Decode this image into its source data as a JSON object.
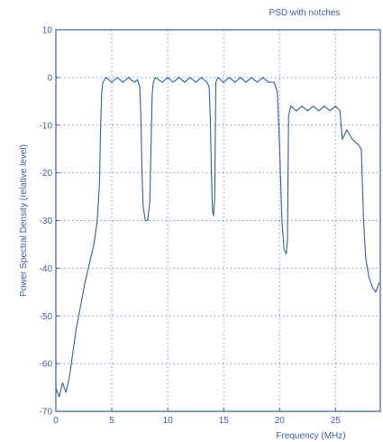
{
  "chart_data": {
    "type": "line",
    "title": "PSD with notches",
    "xlabel": "Frequency (MHz)",
    "ylabel": "Power Spectral Density (relative level)",
    "xlim": [
      0,
      29
    ],
    "ylim": [
      -70,
      10
    ],
    "xticks": [
      0,
      5,
      10,
      15,
      20,
      25
    ],
    "yticks": [
      10,
      0,
      -10,
      -20,
      -30,
      -40,
      -50,
      -60,
      -70
    ],
    "grid": true,
    "colors": {
      "line": "#2f5e99",
      "text": "#3a5f9a",
      "grid": "#3d6fb0"
    },
    "series": [
      {
        "x": [
          0,
          0.3,
          0.6,
          0.9,
          1.2,
          1.5,
          1.8,
          2.2,
          2.6,
          3.0,
          3.4,
          3.7,
          3.9,
          4.0,
          4.1,
          4.2,
          4.5,
          5.0,
          5.5,
          6.0,
          6.5,
          7.0,
          7.3,
          7.5,
          7.6,
          7.7,
          7.8,
          8.0,
          8.2,
          8.4,
          8.5,
          8.6,
          8.7,
          8.9,
          9.5,
          10.0,
          10.5,
          11.0,
          11.5,
          12.0,
          12.5,
          13.0,
          13.5,
          13.7,
          13.8,
          13.9,
          14.0,
          14.1,
          14.2,
          14.3,
          14.5,
          15.0,
          15.5,
          16.0,
          16.5,
          17.0,
          17.5,
          18.0,
          18.5,
          19.0,
          19.5,
          19.8,
          20.0,
          20.2,
          20.4,
          20.6,
          20.7,
          20.8,
          21.0,
          21.5,
          22.0,
          22.5,
          23.0,
          23.5,
          24.0,
          24.5,
          25.0,
          25.4,
          25.6,
          25.8,
          26.0,
          26.5,
          27.0,
          27.3,
          27.5,
          27.7,
          28.0,
          28.3,
          28.6,
          28.9
        ],
        "y": [
          -65,
          -67,
          -64,
          -66,
          -63,
          -58,
          -53,
          -48,
          -43,
          -39,
          -35,
          -30,
          -22,
          -10,
          -3,
          -1,
          0,
          -1,
          0,
          -1,
          0,
          -1,
          -0.5,
          -2,
          -8,
          -20,
          -27,
          -30,
          -30,
          -26,
          -15,
          -4,
          -1,
          0,
          -1,
          0,
          -1,
          0,
          -1,
          0,
          -1,
          0,
          -1,
          -2,
          -8,
          -20,
          -28,
          -29,
          -25,
          -1,
          0,
          -1,
          0,
          -1,
          0,
          -1,
          0,
          -1,
          0,
          -1,
          -1,
          -3,
          -15,
          -30,
          -36,
          -37,
          -34,
          -8,
          -6,
          -7,
          -6,
          -7,
          -6,
          -7,
          -6,
          -7,
          -6,
          -7,
          -13,
          -12,
          -11,
          -13,
          -14,
          -15,
          -30,
          -38,
          -42,
          -44,
          -45,
          -43
        ]
      }
    ]
  }
}
